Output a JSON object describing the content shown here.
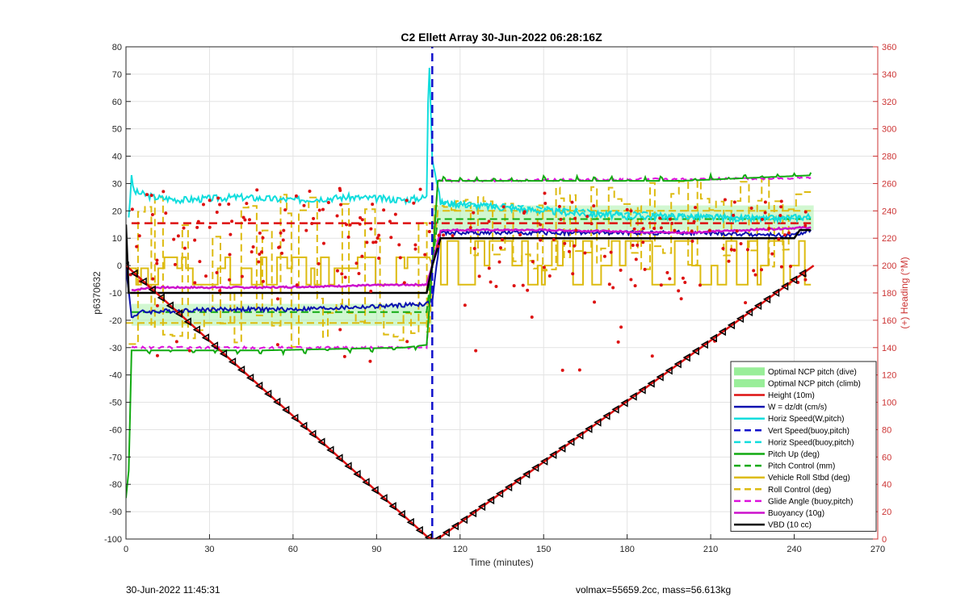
{
  "chart_data": {
    "type": "line",
    "title": "C2 Ellett Array 30-Jun-2022 06:28:16Z",
    "xlabel": "Time (minutes)",
    "ylabel_left": "p6370632",
    "ylabel_right": "(+) Heading (°M)",
    "xlim": [
      0,
      270
    ],
    "ylim_left": [
      -100,
      80
    ],
    "ylim_right": [
      0,
      360
    ],
    "xticks": [
      "0",
      "30",
      "60",
      "90",
      "120",
      "150",
      "180",
      "210",
      "240",
      "270"
    ],
    "yticks_left": [
      "80",
      "70",
      "60",
      "50",
      "40",
      "30",
      "20",
      "10",
      "0",
      "-10",
      "-20",
      "-30",
      "-40",
      "-50",
      "-60",
      "-70",
      "-80",
      "-90",
      "-100"
    ],
    "yticks_right": [
      "360",
      "340",
      "320",
      "300",
      "280",
      "260",
      "240",
      "220",
      "200",
      "180",
      "160",
      "140",
      "120",
      "100",
      "80",
      "60",
      "40",
      "20",
      "0"
    ],
    "grid": true,
    "legend_position": "lower-right",
    "colors": {
      "ncp": "#99ee99",
      "height": "#dd1111",
      "w": "#0b11b0",
      "horiz": "#11dddd",
      "vert": "#1111cc",
      "pitch": "#11aa11",
      "roll": "#ddbb11",
      "glide": "#dd11dd",
      "buoy": "#cc11cc",
      "vbd": "#000000",
      "heading": "#dd1111",
      "right_axis": "#cc3333"
    },
    "legend": [
      {
        "label": "Optimal NCP pitch (dive)",
        "style": "patch",
        "color": "#99ee99"
      },
      {
        "label": "Optimal NCP pitch (climb)",
        "style": "patch",
        "color": "#99ee99"
      },
      {
        "label": "Height (10m)",
        "style": "solid",
        "color": "#dd1111"
      },
      {
        "label": "W = dz/dt (cm/s)",
        "style": "solid",
        "color": "#0b11b0"
      },
      {
        "label": "Horiz Speed(W,pitch)",
        "style": "solid",
        "color": "#11dddd"
      },
      {
        "label": "Vert Speed(buoy,pitch)",
        "style": "dashed",
        "color": "#1111cc"
      },
      {
        "label": "Horiz Speed(buoy,pitch)",
        "style": "dashed",
        "color": "#11dddd"
      },
      {
        "label": "Pitch Up (deg)",
        "style": "solid",
        "color": "#11aa11"
      },
      {
        "label": "Pitch Control (mm)",
        "style": "dashed",
        "color": "#11aa11"
      },
      {
        "label": "Vehicle Roll Stbd (deg)",
        "style": "solid",
        "color": "#ddbb11"
      },
      {
        "label": "Roll Control (deg)",
        "style": "dashed",
        "color": "#ddbb11"
      },
      {
        "label": "Glide Angle (buoy,pitch)",
        "style": "dashed",
        "color": "#dd11dd"
      },
      {
        "label": "Buoyancy (10g)",
        "style": "solid",
        "color": "#cc11cc"
      },
      {
        "label": "VBD (10 cc)",
        "style": "solid",
        "color": "#000000"
      }
    ],
    "ncp_bands": [
      {
        "name": "Optimal NCP pitch (dive)",
        "x": [
          2,
          110
        ],
        "y": [
          -22,
          -14
        ]
      },
      {
        "name": "Optimal NCP pitch (climb)",
        "x": [
          110,
          247
        ],
        "y": [
          13,
          22
        ]
      }
    ],
    "series": [
      {
        "name": "Height (10m)",
        "x": [
          0,
          108,
          110,
          112,
          247
        ],
        "y": [
          0,
          -99,
          -100,
          -100,
          0
        ]
      },
      {
        "name": "W = dz/dt (cm/s)",
        "x": [
          0,
          2,
          5,
          30,
          60,
          90,
          108,
          110,
          113,
          150,
          200,
          240,
          246
        ],
        "y": [
          0,
          -19,
          -17,
          -16,
          -16,
          -15,
          -14,
          -13,
          12,
          12,
          12,
          11,
          13
        ]
      },
      {
        "name": "Horiz Speed(W,pitch)",
        "x": [
          1,
          2,
          3,
          10,
          20,
          40,
          60,
          80,
          100,
          108,
          108.5,
          109,
          110,
          113,
          150,
          180,
          200,
          230,
          246
        ],
        "y": [
          18,
          32,
          27,
          25,
          24,
          25,
          24,
          25,
          24,
          25,
          60,
          73,
          40,
          23,
          20,
          18,
          18,
          17,
          18
        ]
      },
      {
        "name": "Vert Speed(buoy,pitch)",
        "x": [
          110,
          110
        ],
        "y": [
          -100,
          80
        ]
      },
      {
        "name": "Pitch Up (deg)",
        "x": [
          0,
          1,
          2,
          3,
          10,
          50,
          100,
          108,
          110,
          112,
          150,
          200,
          246
        ],
        "y": [
          -85,
          -75,
          -31,
          -31,
          -31,
          -31,
          -30,
          -29,
          0,
          31,
          31,
          31,
          33
        ]
      },
      {
        "name": "Pitch Control (mm)",
        "x": [
          2,
          108,
          110,
          112,
          246
        ],
        "y": [
          -17,
          -17,
          0,
          17,
          17
        ]
      },
      {
        "name": "Roll Control (deg)",
        "x": [
          0,
          108,
          110,
          112,
          246
        ],
        "y": [
          -21,
          -21,
          0,
          20,
          20
        ]
      },
      {
        "name": "Glide Angle (buoy,pitch)",
        "x": [
          2,
          108,
          110,
          112,
          246
        ],
        "y": [
          -30,
          -30,
          0,
          31,
          32
        ]
      },
      {
        "name": "Buoyancy (10g)",
        "x": [
          2,
          10,
          50,
          100,
          108,
          110,
          113,
          150,
          200,
          246
        ],
        "y": [
          -9,
          -8,
          -8,
          -7,
          -7,
          0,
          13,
          13,
          12,
          14
        ]
      },
      {
        "name": "VBD (10 cc)",
        "x": [
          0,
          1,
          2,
          108,
          110,
          113,
          240,
          242,
          246
        ],
        "y": [
          15,
          -10,
          -10,
          -10,
          0,
          10,
          10,
          13,
          13
        ]
      },
      {
        "name": "Heading (°M)",
        "axis": "right",
        "x": [
          2,
          108,
          110,
          112,
          246
        ],
        "y": [
          231,
          231,
          231,
          231,
          231
        ]
      }
    ],
    "annotations": {
      "footer_left": "30-Jun-2022 11:45:31",
      "footer_right": "volmax=55659.2cc, mass=56.613kg"
    }
  }
}
